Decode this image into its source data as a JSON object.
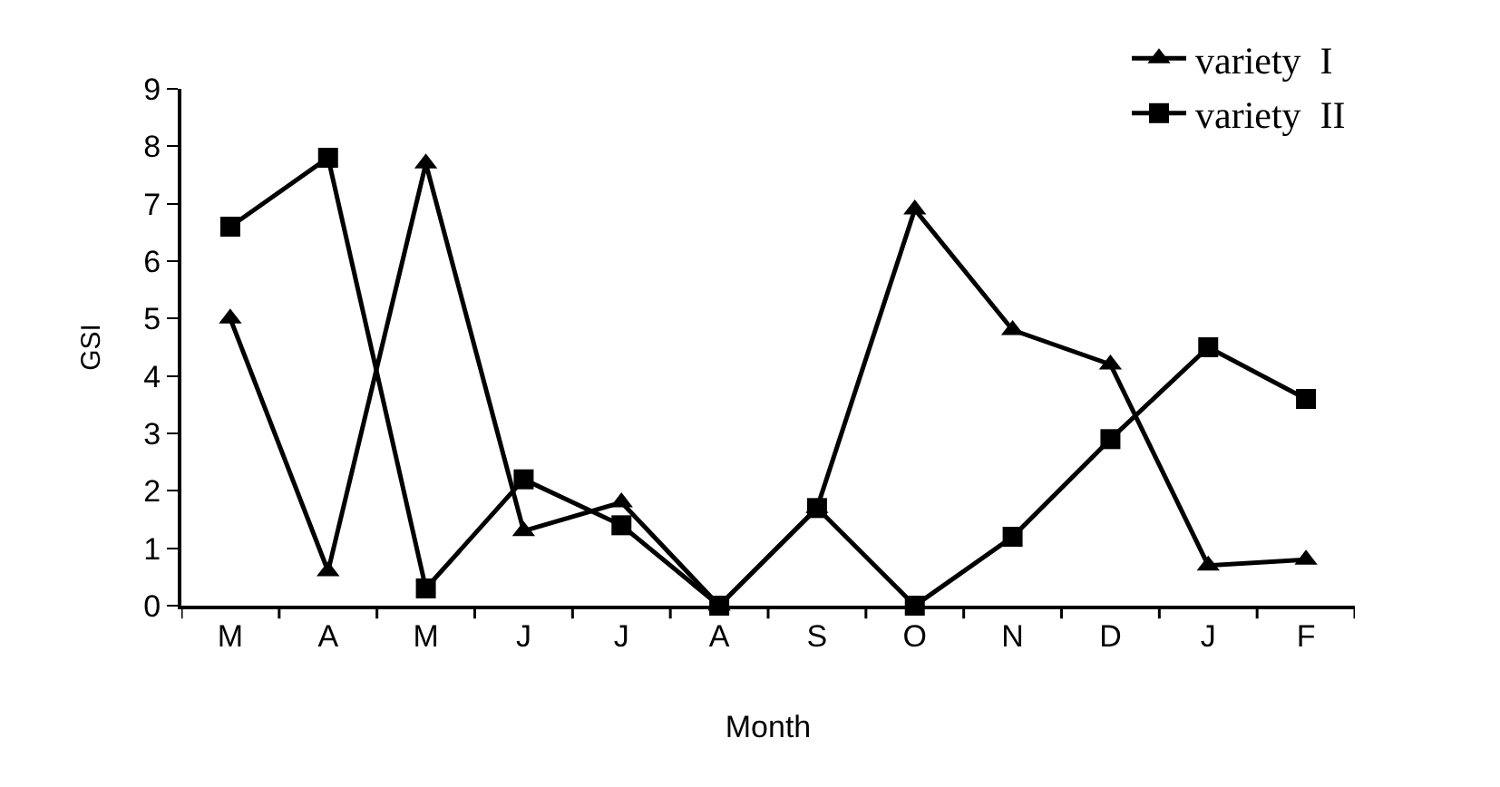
{
  "chart_data": {
    "type": "line",
    "xlabel": "Month",
    "ylabel": "GSI",
    "categories": [
      "M",
      "A",
      "M",
      "J",
      "J",
      "A",
      "S",
      "O",
      "N",
      "D",
      "J",
      "F"
    ],
    "series": [
      {
        "name": "variety  I",
        "color": "#000000",
        "marker": "triangle",
        "values": [
          5.0,
          0.6,
          7.7,
          1.3,
          1.8,
          0,
          1.7,
          6.9,
          4.8,
          4.2,
          0.7,
          0.8
        ]
      },
      {
        "name": "variety  II",
        "color": "#000000",
        "marker": "square",
        "values": [
          6.6,
          7.8,
          0.3,
          2.2,
          1.4,
          0,
          1.7,
          0,
          1.2,
          2.9,
          4.5,
          3.6
        ]
      }
    ],
    "ylim": [
      0,
      9
    ],
    "yticks": [
      0,
      1,
      2,
      3,
      4,
      5,
      6,
      7,
      8,
      9
    ],
    "grid": false,
    "legend": "top right",
    "line_style": "solid"
  }
}
